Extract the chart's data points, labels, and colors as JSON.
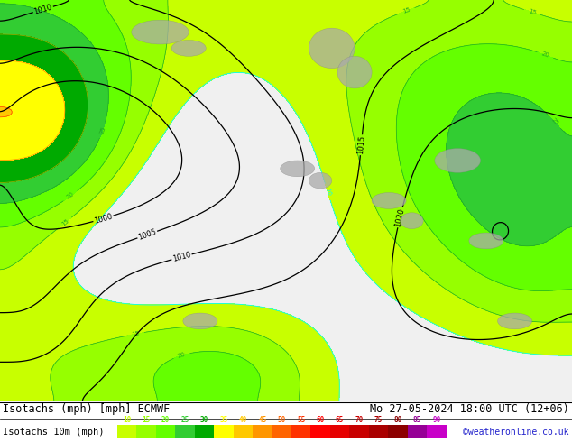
{
  "title_left": "Isotachs (mph) [mph] ECMWF",
  "title_right": "Mo 27-05-2024 18:00 UTC (12+06)",
  "legend_label": "Isotachs 10m (mph)",
  "legend_values": [
    10,
    15,
    20,
    25,
    30,
    35,
    40,
    45,
    50,
    55,
    60,
    65,
    70,
    75,
    80,
    85,
    90
  ],
  "legend_colors": [
    "#c8ff00",
    "#96ff00",
    "#64ff00",
    "#32cd32",
    "#00aa00",
    "#ffff00",
    "#ffc800",
    "#ff9600",
    "#ff6400",
    "#ff3200",
    "#ff0000",
    "#e60000",
    "#c80000",
    "#aa0000",
    "#8c0000",
    "#960096",
    "#c800c8"
  ],
  "copyright": "©weatheronline.co.uk",
  "bg_white": "#f0f0f0",
  "bg_green_light": "#c8e6c0",
  "bg_green_mid": "#a0d090",
  "title_font_size": 8.5,
  "legend_font_size": 7.5,
  "fig_width": 6.34,
  "fig_height": 4.9,
  "dpi": 100
}
